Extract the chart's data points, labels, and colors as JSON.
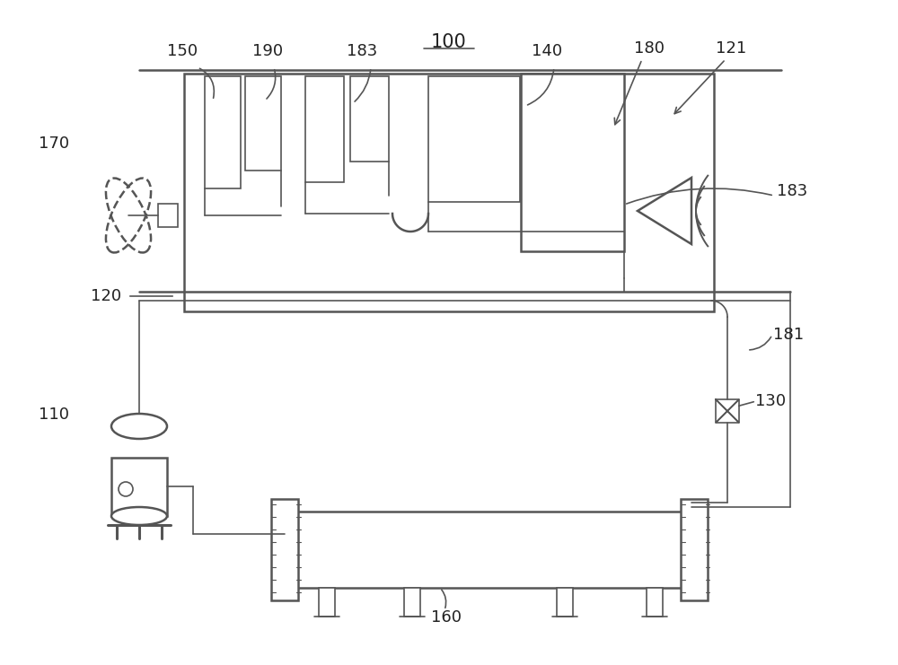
{
  "bg": "#ffffff",
  "lc": "#555555",
  "lw_main": 1.8,
  "lw_thin": 1.2,
  "fs_label": 13,
  "label_color": "#222222"
}
